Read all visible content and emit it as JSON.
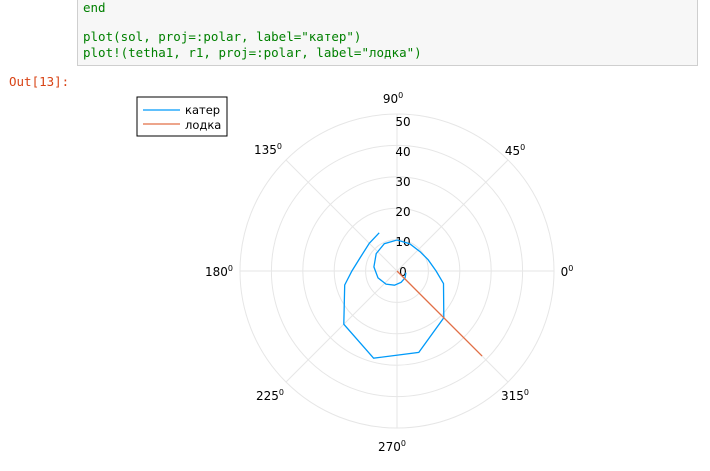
{
  "code": {
    "lines": [
      "end",
      "",
      "plot(sol, proj=:polar, label=\"катер\")",
      "plot!(tetha1, r1, proj=:polar, label=\"лодка\")"
    ]
  },
  "output": {
    "prompt": "Out[13]:"
  },
  "chart_data": {
    "type": "line",
    "projection": "polar",
    "radial_ticks": [
      "0",
      "10",
      "20",
      "30",
      "40",
      "50"
    ],
    "rlim": [
      0,
      50
    ],
    "angle_labels": [
      "0",
      "45",
      "90",
      "135",
      "180",
      "225",
      "270",
      "315"
    ],
    "grid": true,
    "legend_position": "top-left",
    "series": [
      {
        "name": "катер",
        "color": "#009af9",
        "points": [
          {
            "theta_deg": 350,
            "r": 3
          },
          {
            "theta_deg": 320,
            "r": 3.5
          },
          {
            "theta_deg": 290,
            "r": 4
          },
          {
            "theta_deg": 260,
            "r": 4.8
          },
          {
            "theta_deg": 230,
            "r": 5.7
          },
          {
            "theta_deg": 200,
            "r": 6.7
          },
          {
            "theta_deg": 170,
            "r": 7.8
          },
          {
            "theta_deg": 140,
            "r": 9
          },
          {
            "theta_deg": 115,
            "r": 10
          },
          {
            "theta_deg": 90,
            "r": 10.3
          },
          {
            "theta_deg": 65,
            "r": 10
          },
          {
            "theta_deg": 40,
            "r": 10
          },
          {
            "theta_deg": 20,
            "r": 11
          },
          {
            "theta_deg": 0,
            "r": 13
          },
          {
            "theta_deg": -15,
            "r": 16
          },
          {
            "theta_deg": -45,
            "r": 22
          },
          {
            "theta_deg": -75,
            "r": 28
          },
          {
            "theta_deg": -105,
            "r": 30
          },
          {
            "theta_deg": -135,
            "r": 25
          },
          {
            "theta_deg": -165,
            "r": 18
          },
          {
            "theta_deg": -180,
            "r": 15
          },
          {
            "theta_deg": -200,
            "r": 13
          },
          {
            "theta_deg": -225,
            "r": 13
          },
          {
            "theta_deg": -245,
            "r": 14
          }
        ]
      },
      {
        "name": "лодка",
        "color": "#e26f46",
        "points": [
          {
            "theta_deg": 315,
            "r": 0
          },
          {
            "theta_deg": 315,
            "r": 40
          }
        ]
      }
    ]
  }
}
